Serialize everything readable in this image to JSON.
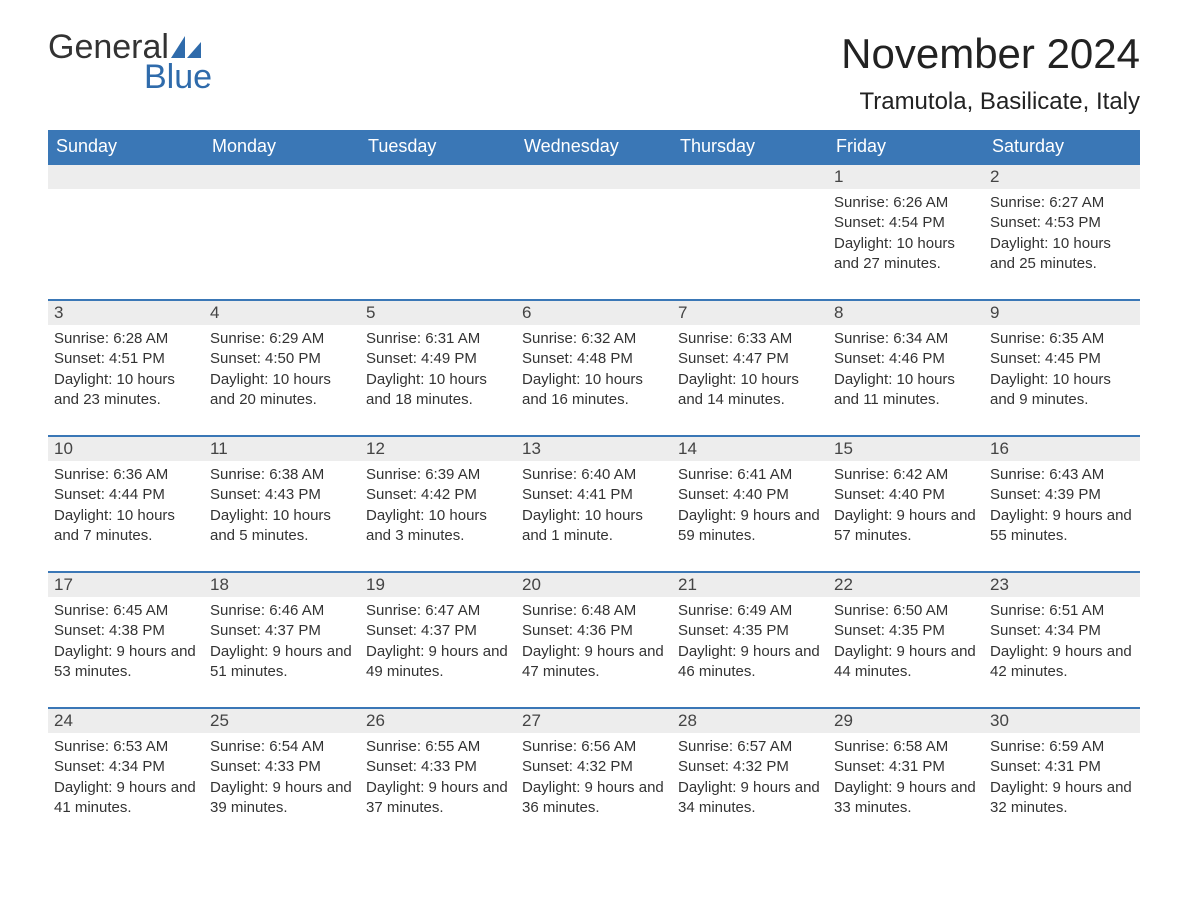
{
  "brand": {
    "word1": "General",
    "word2": "Blue",
    "text_color": "#333333",
    "accent_color": "#2f6bab"
  },
  "header": {
    "month_title": "November 2024",
    "location": "Tramutola, Basilicate, Italy"
  },
  "style": {
    "header_bg": "#3a77b6",
    "header_fg": "#ffffff",
    "row_divider": "#3a77b6",
    "daynum_bg": "#ededed",
    "body_bg": "#ffffff",
    "text_color": "#333333",
    "weekday_fontsize": 18,
    "daynum_fontsize": 17,
    "body_fontsize": 15,
    "title_fontsize": 42,
    "location_fontsize": 24
  },
  "weekdays": [
    "Sunday",
    "Monday",
    "Tuesday",
    "Wednesday",
    "Thursday",
    "Friday",
    "Saturday"
  ],
  "weeks": [
    [
      {
        "day": "",
        "lines": []
      },
      {
        "day": "",
        "lines": []
      },
      {
        "day": "",
        "lines": []
      },
      {
        "day": "",
        "lines": []
      },
      {
        "day": "",
        "lines": []
      },
      {
        "day": "1",
        "lines": [
          "Sunrise: 6:26 AM",
          "Sunset: 4:54 PM",
          "Daylight: 10 hours and 27 minutes."
        ]
      },
      {
        "day": "2",
        "lines": [
          "Sunrise: 6:27 AM",
          "Sunset: 4:53 PM",
          "Daylight: 10 hours and 25 minutes."
        ]
      }
    ],
    [
      {
        "day": "3",
        "lines": [
          "Sunrise: 6:28 AM",
          "Sunset: 4:51 PM",
          "Daylight: 10 hours and 23 minutes."
        ]
      },
      {
        "day": "4",
        "lines": [
          "Sunrise: 6:29 AM",
          "Sunset: 4:50 PM",
          "Daylight: 10 hours and 20 minutes."
        ]
      },
      {
        "day": "5",
        "lines": [
          "Sunrise: 6:31 AM",
          "Sunset: 4:49 PM",
          "Daylight: 10 hours and 18 minutes."
        ]
      },
      {
        "day": "6",
        "lines": [
          "Sunrise: 6:32 AM",
          "Sunset: 4:48 PM",
          "Daylight: 10 hours and 16 minutes."
        ]
      },
      {
        "day": "7",
        "lines": [
          "Sunrise: 6:33 AM",
          "Sunset: 4:47 PM",
          "Daylight: 10 hours and 14 minutes."
        ]
      },
      {
        "day": "8",
        "lines": [
          "Sunrise: 6:34 AM",
          "Sunset: 4:46 PM",
          "Daylight: 10 hours and 11 minutes."
        ]
      },
      {
        "day": "9",
        "lines": [
          "Sunrise: 6:35 AM",
          "Sunset: 4:45 PM",
          "Daylight: 10 hours and 9 minutes."
        ]
      }
    ],
    [
      {
        "day": "10",
        "lines": [
          "Sunrise: 6:36 AM",
          "Sunset: 4:44 PM",
          "Daylight: 10 hours and 7 minutes."
        ]
      },
      {
        "day": "11",
        "lines": [
          "Sunrise: 6:38 AM",
          "Sunset: 4:43 PM",
          "Daylight: 10 hours and 5 minutes."
        ]
      },
      {
        "day": "12",
        "lines": [
          "Sunrise: 6:39 AM",
          "Sunset: 4:42 PM",
          "Daylight: 10 hours and 3 minutes."
        ]
      },
      {
        "day": "13",
        "lines": [
          "Sunrise: 6:40 AM",
          "Sunset: 4:41 PM",
          "Daylight: 10 hours and 1 minute."
        ]
      },
      {
        "day": "14",
        "lines": [
          "Sunrise: 6:41 AM",
          "Sunset: 4:40 PM",
          "Daylight: 9 hours and 59 minutes."
        ]
      },
      {
        "day": "15",
        "lines": [
          "Sunrise: 6:42 AM",
          "Sunset: 4:40 PM",
          "Daylight: 9 hours and 57 minutes."
        ]
      },
      {
        "day": "16",
        "lines": [
          "Sunrise: 6:43 AM",
          "Sunset: 4:39 PM",
          "Daylight: 9 hours and 55 minutes."
        ]
      }
    ],
    [
      {
        "day": "17",
        "lines": [
          "Sunrise: 6:45 AM",
          "Sunset: 4:38 PM",
          "Daylight: 9 hours and 53 minutes."
        ]
      },
      {
        "day": "18",
        "lines": [
          "Sunrise: 6:46 AM",
          "Sunset: 4:37 PM",
          "Daylight: 9 hours and 51 minutes."
        ]
      },
      {
        "day": "19",
        "lines": [
          "Sunrise: 6:47 AM",
          "Sunset: 4:37 PM",
          "Daylight: 9 hours and 49 minutes."
        ]
      },
      {
        "day": "20",
        "lines": [
          "Sunrise: 6:48 AM",
          "Sunset: 4:36 PM",
          "Daylight: 9 hours and 47 minutes."
        ]
      },
      {
        "day": "21",
        "lines": [
          "Sunrise: 6:49 AM",
          "Sunset: 4:35 PM",
          "Daylight: 9 hours and 46 minutes."
        ]
      },
      {
        "day": "22",
        "lines": [
          "Sunrise: 6:50 AM",
          "Sunset: 4:35 PM",
          "Daylight: 9 hours and 44 minutes."
        ]
      },
      {
        "day": "23",
        "lines": [
          "Sunrise: 6:51 AM",
          "Sunset: 4:34 PM",
          "Daylight: 9 hours and 42 minutes."
        ]
      }
    ],
    [
      {
        "day": "24",
        "lines": [
          "Sunrise: 6:53 AM",
          "Sunset: 4:34 PM",
          "Daylight: 9 hours and 41 minutes."
        ]
      },
      {
        "day": "25",
        "lines": [
          "Sunrise: 6:54 AM",
          "Sunset: 4:33 PM",
          "Daylight: 9 hours and 39 minutes."
        ]
      },
      {
        "day": "26",
        "lines": [
          "Sunrise: 6:55 AM",
          "Sunset: 4:33 PM",
          "Daylight: 9 hours and 37 minutes."
        ]
      },
      {
        "day": "27",
        "lines": [
          "Sunrise: 6:56 AM",
          "Sunset: 4:32 PM",
          "Daylight: 9 hours and 36 minutes."
        ]
      },
      {
        "day": "28",
        "lines": [
          "Sunrise: 6:57 AM",
          "Sunset: 4:32 PM",
          "Daylight: 9 hours and 34 minutes."
        ]
      },
      {
        "day": "29",
        "lines": [
          "Sunrise: 6:58 AM",
          "Sunset: 4:31 PM",
          "Daylight: 9 hours and 33 minutes."
        ]
      },
      {
        "day": "30",
        "lines": [
          "Sunrise: 6:59 AM",
          "Sunset: 4:31 PM",
          "Daylight: 9 hours and 32 minutes."
        ]
      }
    ]
  ]
}
